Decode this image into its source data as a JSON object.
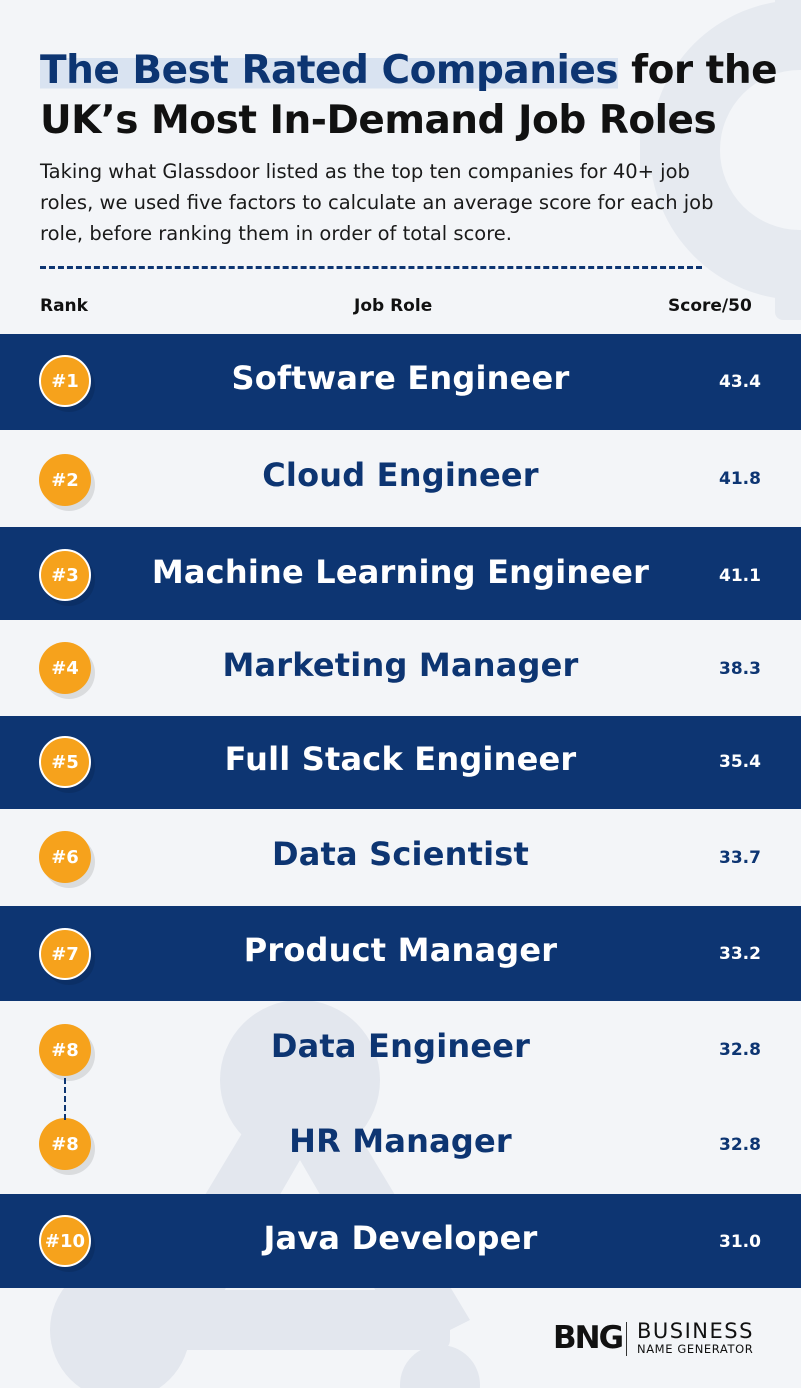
{
  "title": {
    "highlight": "The Best Rated Companies",
    "rest": " for the UK’s Most In-Demand Job Roles"
  },
  "subtitle": "Taking what Glassdoor listed as the top ten companies for 40+ job roles, we used five factors to calculate an average score for each job role, before ranking them in order of total score.",
  "headers": {
    "rank": "Rank",
    "role": "Job Role",
    "score": "Score/50"
  },
  "rows": [
    {
      "rank": "#1",
      "role": "Software Engineer",
      "score": "43.4"
    },
    {
      "rank": "#2",
      "role": "Cloud Engineer",
      "score": "41.8"
    },
    {
      "rank": "#3",
      "role": "Machine Learning Engineer",
      "score": "41.1"
    },
    {
      "rank": "#4",
      "role": "Marketing Manager",
      "score": "38.3"
    },
    {
      "rank": "#5",
      "role": "Full Stack Engineer",
      "score": "35.4"
    },
    {
      "rank": "#6",
      "role": "Data Scientist",
      "score": "33.7"
    },
    {
      "rank": "#7",
      "role": "Product Manager",
      "score": "33.2"
    },
    {
      "rank": "#8",
      "role": "Data Engineer",
      "score": "32.8"
    },
    {
      "rank": "#8",
      "role": "HR Manager",
      "score": "32.8"
    },
    {
      "rank": "#10",
      "role": "Java Developer",
      "score": "31.0"
    }
  ],
  "logo": {
    "mark": "BNG",
    "line1": "BUSINESS",
    "line2": "NAME GENERATOR"
  },
  "colors": {
    "navy": "#0d3572",
    "orange": "#f6a21c",
    "background": "#f3f5f8"
  }
}
